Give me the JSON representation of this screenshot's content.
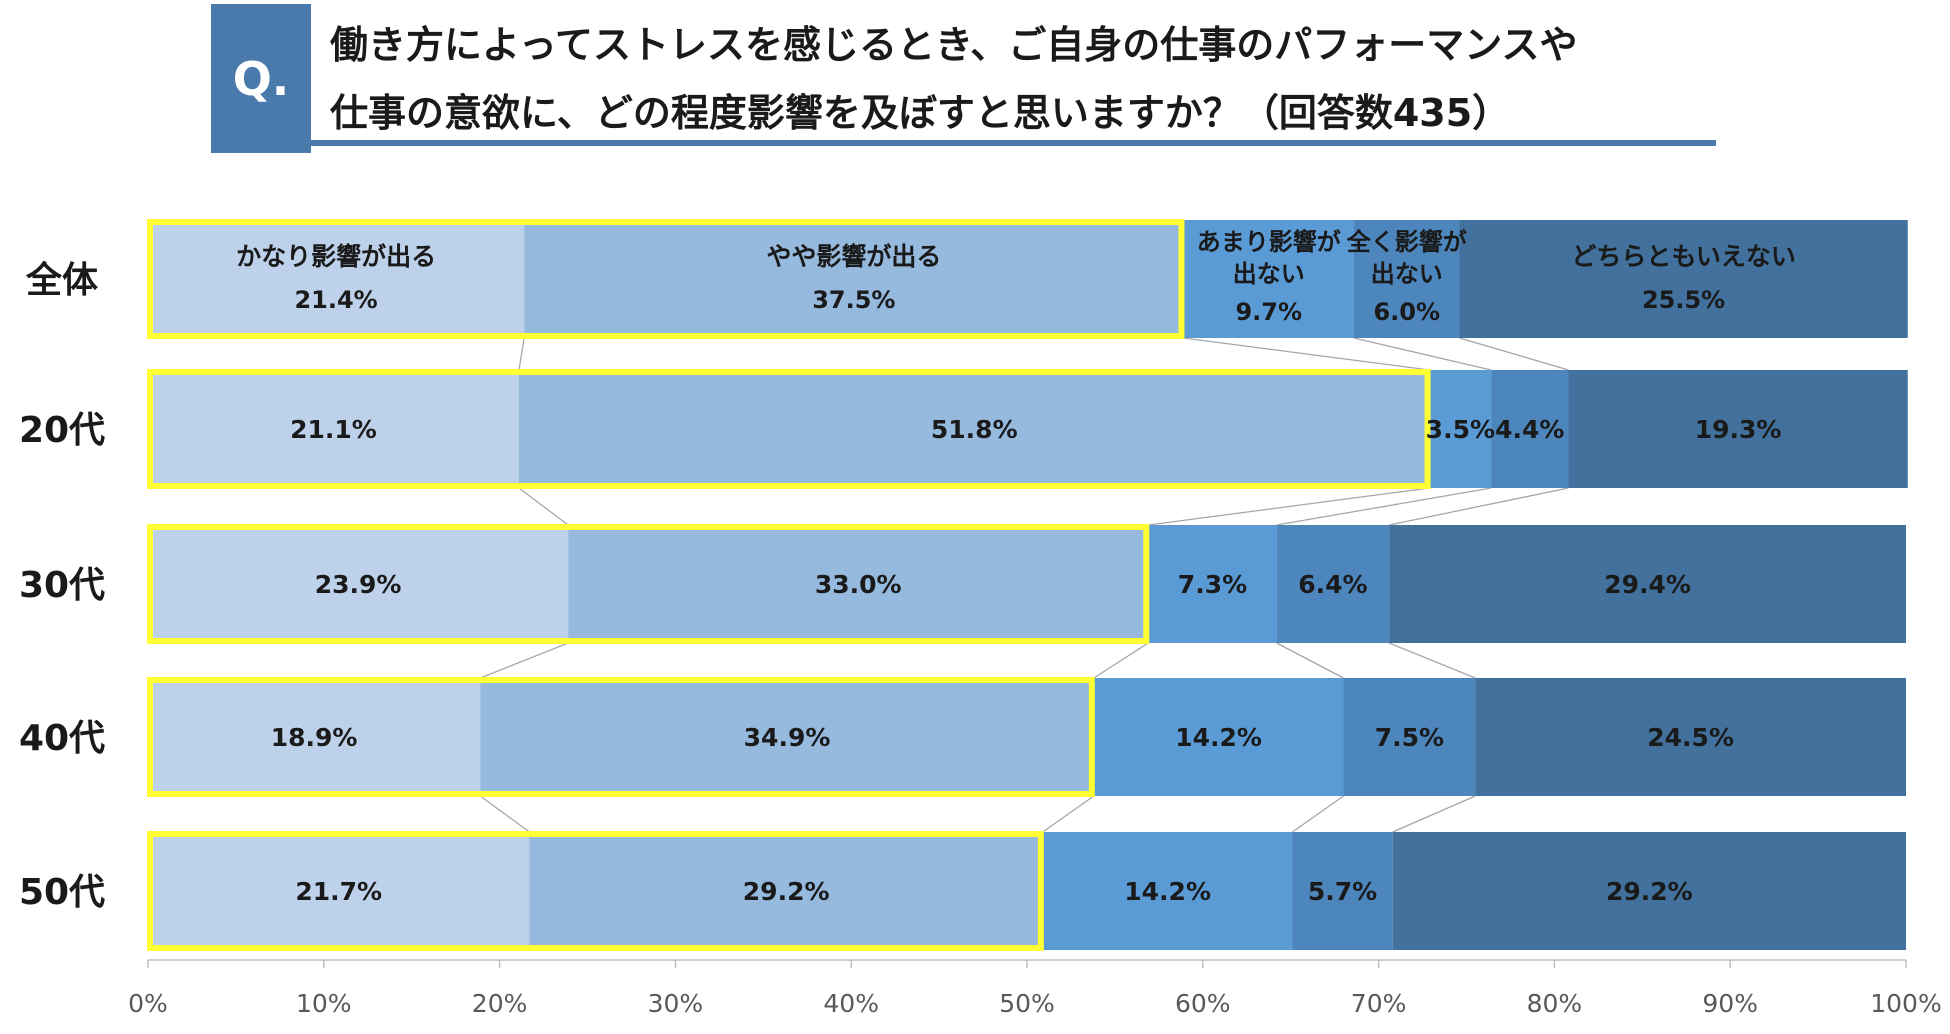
{
  "title": {
    "badge": "Q.",
    "line1": "働き方によってストレスを感じるとき、ご自身の仕事のパフォーマンスや",
    "line2": "仕事の意欲に、どの程度影響を及ぼすと思いますか？（回答数435）"
  },
  "chart_data": {
    "type": "bar",
    "orientation": "horizontal",
    "stacked": true,
    "percent": true,
    "categories": [
      "全体",
      "20代",
      "30代",
      "40代",
      "50代"
    ],
    "series": [
      {
        "name": "かなり影響が出る",
        "values": [
          21.4,
          21.1,
          23.9,
          18.9,
          21.7
        ],
        "color": "#bdd1ea"
      },
      {
        "name": "やや影響が出る",
        "values": [
          37.5,
          51.8,
          33.0,
          34.9,
          29.2
        ],
        "color": "#96b9de"
      },
      {
        "name": "あまり影響が出ない",
        "values": [
          9.7,
          3.5,
          7.3,
          14.2,
          14.2
        ],
        "color": "#5b9bd5"
      },
      {
        "name": "全く影響が出ない",
        "values": [
          6.0,
          4.4,
          6.4,
          7.5,
          5.7
        ],
        "color": "#4d86bd"
      },
      {
        "name": "どちらともいえない",
        "values": [
          25.5,
          19.3,
          29.4,
          24.5,
          29.2
        ],
        "color": "#41719c"
      }
    ],
    "xlim": [
      0,
      100
    ],
    "xticks": [
      "0%",
      "10%",
      "20%",
      "30%",
      "40%",
      "50%",
      "60%",
      "70%",
      "80%",
      "90%",
      "100%"
    ],
    "label_suffix": "%",
    "highlight": {
      "first_series_count": 2,
      "color": "#ffff33"
    },
    "series_lines": true,
    "legend": "inside-first-bar"
  }
}
